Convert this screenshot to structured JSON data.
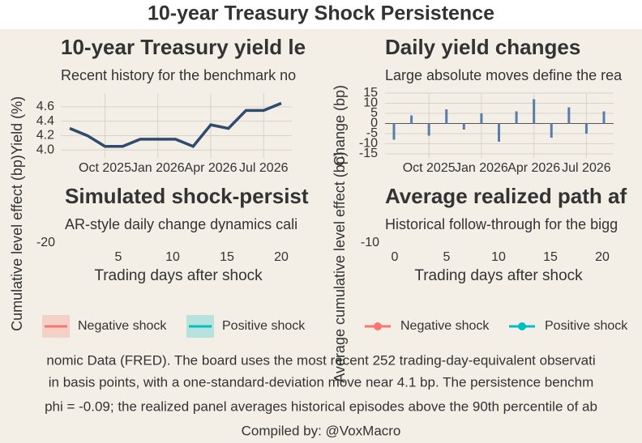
{
  "title": "10-year Treasury Shock Persistence",
  "caption": [
    "nomic Data (FRED). The board uses the most recent 252 trading-day-equivalent observati",
    "in basis points, with a one-standard-deviation move near 4.1 bp. The persistence benchm",
    "phi = -0.09; the realized panel averages historical episodes above the 90th percentile of ab"
  ],
  "credit": "Compiled by: @VoxMacro",
  "chart_data": [
    {
      "type": "line",
      "title": "10-year Treasury yield le",
      "subtitle": "Recent history for the benchmark no",
      "y_label": "Yield (%)",
      "x": [
        "2025-08",
        "2025-09",
        "2025-10",
        "2025-11",
        "2025-12",
        "2026-01",
        "2026-02",
        "2026-03",
        "2026-04",
        "2026-05",
        "2026-06",
        "2026-07",
        "2026-08"
      ],
      "values": [
        4.3,
        4.2,
        4.05,
        4.05,
        4.15,
        4.15,
        4.15,
        4.05,
        4.35,
        4.3,
        4.55,
        4.55,
        4.65
      ],
      "color": "#2f4b6e",
      "xlim": [
        "2025-08",
        "2026-08"
      ],
      "xticks": [
        {
          "value": "2025-10",
          "label": "Oct 2025"
        },
        {
          "value": "2026-01",
          "label": "Jan 2026"
        },
        {
          "value": "2026-04",
          "label": "Apr 2026"
        },
        {
          "value": "2026-07",
          "label": "Jul 2026"
        }
      ],
      "ylim": [
        3.89,
        4.79
      ],
      "yticks": [
        {
          "value": 4,
          "label": "4.0"
        },
        4.2,
        4.4,
        4.6
      ],
      "grid": true
    },
    {
      "type": "bar",
      "title": "Daily yield changes",
      "subtitle": "Large absolute moves define the rea",
      "y_label": "Change (bp)",
      "x": [
        "2025-08",
        "2025-09",
        "2025-10",
        "2025-11",
        "2025-12",
        "2026-01",
        "2026-02",
        "2026-03",
        "2026-04",
        "2026-05",
        "2026-06",
        "2026-07",
        "2026-08"
      ],
      "values": [
        -8,
        4,
        -6,
        7,
        -3,
        5,
        -9,
        6,
        12,
        -7,
        8,
        -5,
        6
      ],
      "color": "#5a7ca8",
      "xlim": [
        "2025-08",
        "2026-08"
      ],
      "xticks": [
        {
          "value": "2025-10",
          "label": "Oct 2025"
        },
        {
          "value": "2026-01",
          "label": "Jan 2026"
        },
        {
          "value": "2026-04",
          "label": "Apr 2026"
        },
        {
          "value": "2026-07",
          "label": "Jul 2026"
        }
      ],
      "ylim": [
        -17,
        15
      ],
      "yticks": [
        -15,
        -10,
        -5,
        0,
        5,
        10,
        15
      ],
      "grid": true
    },
    {
      "type": "ribbon",
      "title": "Simulated shock-persist",
      "subtitle": "AR-style daily change dynamics cali",
      "y_label": "Cumulative level effect (bp)",
      "x_label": "Trading days after shock",
      "xlim": [
        0,
        20
      ],
      "xticks": [
        5,
        10,
        15,
        20
      ],
      "yticks": [
        -20
      ],
      "series": [
        {
          "name": "Negative shock",
          "color": "#f8766d"
        },
        {
          "name": "Positive shock",
          "color": "#00bfc4"
        }
      ]
    },
    {
      "type": "line",
      "title": "Average realized path af",
      "subtitle": "Historical follow-through for the bigg",
      "y_label": "Average cumulative level effect (bp)",
      "x_label": "Trading days after shock",
      "xlim": [
        0,
        20
      ],
      "xticks": [
        0,
        5,
        10,
        15,
        20
      ],
      "yticks": [
        -10
      ],
      "series": [
        {
          "name": "Negative shock",
          "color": "#f8766d"
        },
        {
          "name": "Positive shock",
          "color": "#00bfc4"
        }
      ]
    }
  ]
}
